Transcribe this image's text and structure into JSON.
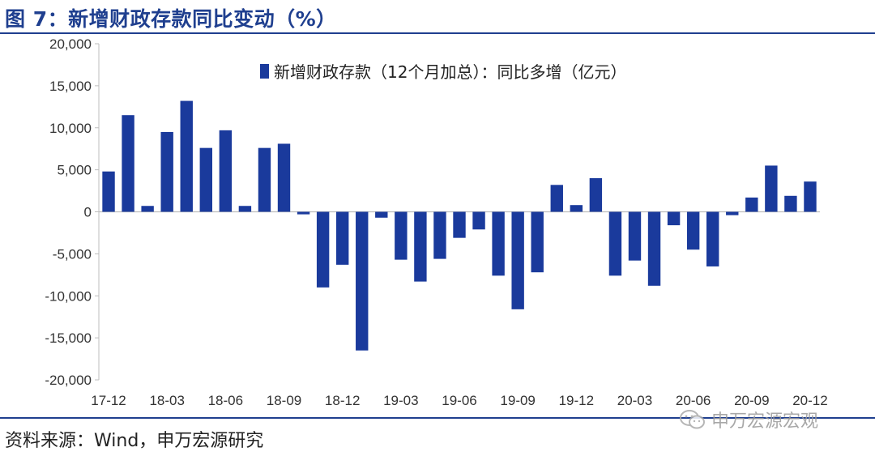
{
  "figure": {
    "title": "图 7：新增财政存款同比变动（%）",
    "source": "资料来源：Wind，申万宏源研究",
    "watermark": "申万宏源宏观",
    "watermark_icon": "wechat-icon"
  },
  "chart_data": {
    "type": "bar",
    "color": "#1a3a9c",
    "legend_position": "top-center",
    "ylim": [
      -20000,
      20000
    ],
    "yticks": [
      20000,
      15000,
      10000,
      5000,
      0,
      -5000,
      -10000,
      -15000,
      -20000
    ],
    "ytick_labels": [
      "20,000",
      "15,000",
      "10,000",
      "5,000",
      "0",
      "-5,000",
      "-10,000",
      "-15,000",
      "-20,000"
    ],
    "xtick_labels": [
      "17-12",
      "18-03",
      "18-06",
      "18-09",
      "18-12",
      "19-03",
      "19-06",
      "19-09",
      "19-12",
      "20-03",
      "20-06",
      "20-09",
      "20-12"
    ],
    "categories": [
      "17-12",
      "18-01",
      "18-02",
      "18-03",
      "18-04",
      "18-05",
      "18-06",
      "18-07",
      "18-08",
      "18-09",
      "18-10",
      "18-11",
      "18-12",
      "19-01",
      "19-02",
      "19-03",
      "19-04",
      "19-05",
      "19-06",
      "19-07",
      "19-08",
      "19-09",
      "19-10",
      "19-11",
      "19-12",
      "20-01",
      "20-02",
      "20-03",
      "20-04",
      "20-05",
      "20-06",
      "20-07",
      "20-08",
      "20-09",
      "20-10",
      "20-11",
      "20-12"
    ],
    "series": [
      {
        "name": "新增财政存款（12个月加总）：同比多增（亿元）",
        "values": [
          4800,
          11500,
          700,
          9500,
          13200,
          7600,
          9700,
          700,
          7600,
          8100,
          -300,
          -9000,
          -6300,
          -16500,
          -700,
          -5700,
          -8300,
          -5600,
          -3100,
          -2100,
          -7600,
          -11600,
          -7200,
          3200,
          800,
          4000,
          -7600,
          -5800,
          -8800,
          -1600,
          -4500,
          -6500,
          -400,
          1700,
          5500,
          1900,
          3600
        ]
      }
    ]
  }
}
